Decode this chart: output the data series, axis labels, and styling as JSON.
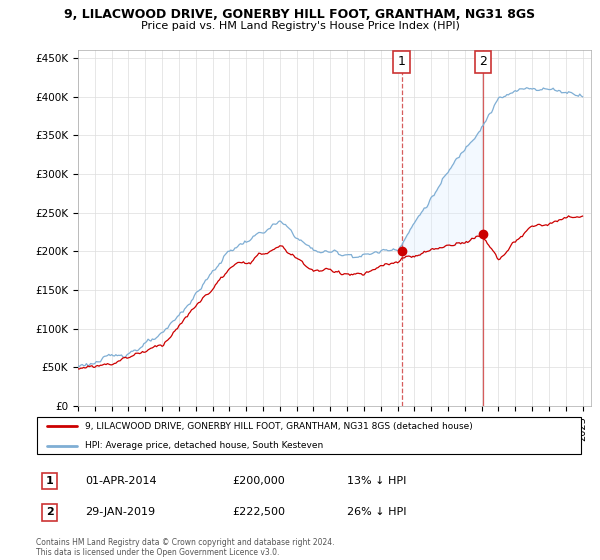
{
  "title_line1": "9, LILACWOOD DRIVE, GONERBY HILL FOOT, GRANTHAM, NG31 8GS",
  "title_line2": "Price paid vs. HM Land Registry's House Price Index (HPI)",
  "ylabel_ticks": [
    "£0",
    "£50K",
    "£100K",
    "£150K",
    "£200K",
    "£250K",
    "£300K",
    "£350K",
    "£400K",
    "£450K"
  ],
  "ylabel_values": [
    0,
    50000,
    100000,
    150000,
    200000,
    250000,
    300000,
    350000,
    400000,
    450000
  ],
  "xlim_start": 1995.0,
  "xlim_end": 2025.5,
  "ylim": [
    0,
    460000
  ],
  "marker1_date": 2014.25,
  "marker1_price": 200000,
  "marker2_date": 2019.08,
  "marker2_price": 222500,
  "hpi_color": "#7faed4",
  "price_color": "#cc0000",
  "shade_color": "#ddeeff",
  "marker_box_color": "#cc3333",
  "legend_label_red": "9, LILACWOOD DRIVE, GONERBY HILL FOOT, GRANTHAM, NG31 8GS (detached house)",
  "legend_label_blue": "HPI: Average price, detached house, South Kesteven",
  "footer": "Contains HM Land Registry data © Crown copyright and database right 2024.\nThis data is licensed under the Open Government Licence v3.0."
}
